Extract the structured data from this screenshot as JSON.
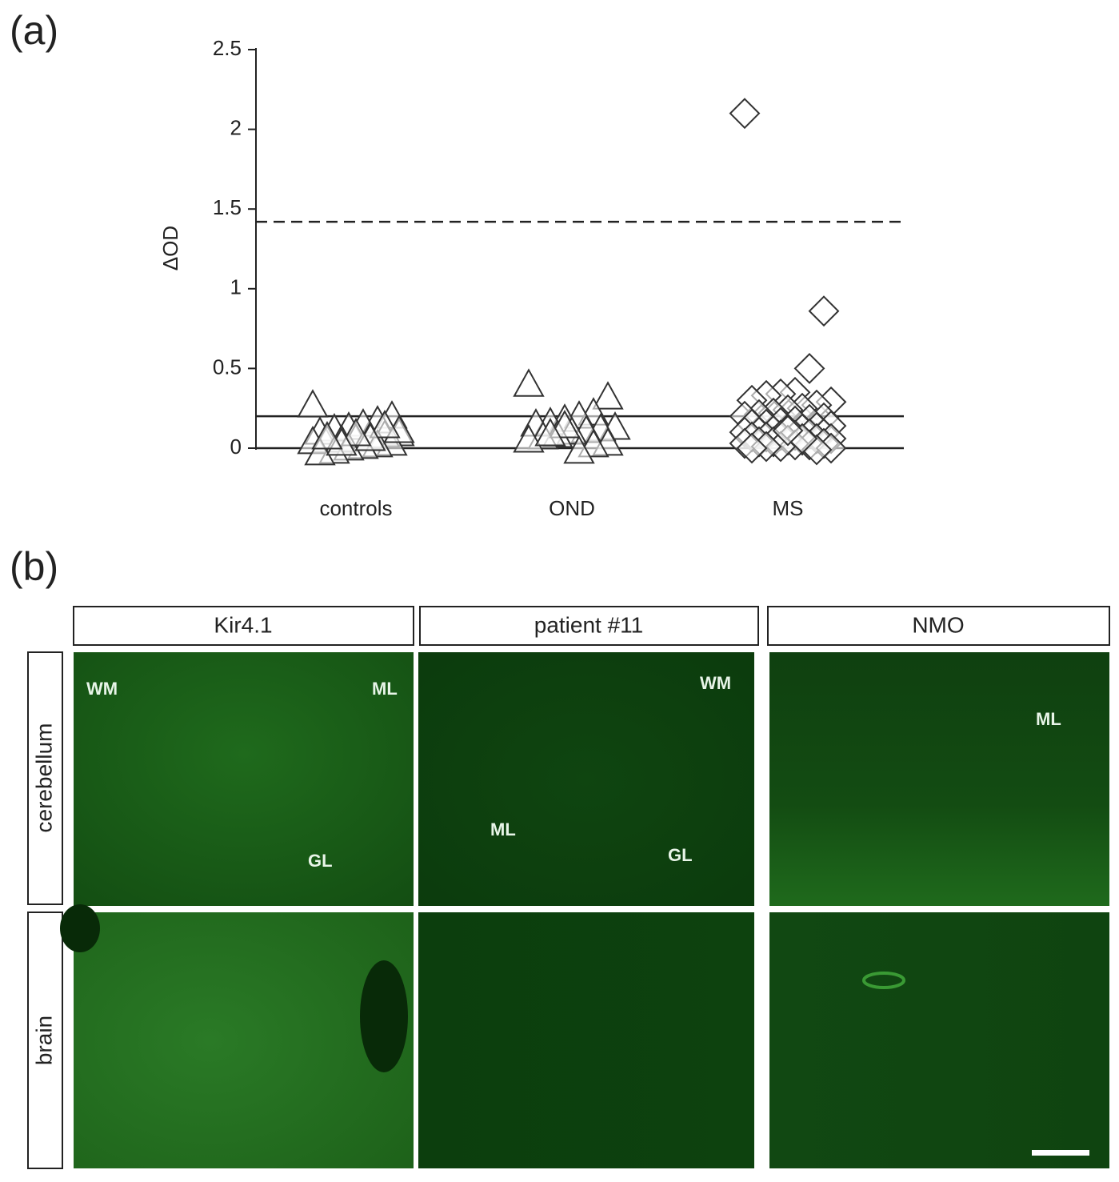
{
  "panel_labels": {
    "a": "(a)",
    "b": "(b)"
  },
  "chart_data": {
    "type": "scatter",
    "ylabel": "ΔOD",
    "ylim": [
      0,
      2.5
    ],
    "yticks": [
      0,
      0.5,
      1,
      1.5,
      2,
      2.5
    ],
    "hlines": [
      {
        "value": 1.42,
        "style": "dashed"
      },
      {
        "value": 0.2,
        "style": "solid"
      },
      {
        "value": 0,
        "style": "solid"
      }
    ],
    "color": "#333333",
    "groups": [
      {
        "category": "controls",
        "marker": "triangle",
        "values": [
          0.27,
          0.2,
          0.17,
          0.15,
          0.13,
          0.12,
          0.1,
          0.09,
          0.08,
          0.07,
          0.06,
          0.05,
          0.05,
          0.04,
          0.03,
          0.02,
          0.01,
          0.0,
          -0.02,
          -0.03,
          0.11,
          0.14,
          0.06,
          0.09,
          0.03,
          0.07
        ]
      },
      {
        "category": "OND",
        "marker": "triangle",
        "values": [
          0.4,
          0.32,
          0.22,
          0.2,
          0.18,
          0.16,
          0.15,
          0.13,
          0.12,
          0.11,
          0.1,
          0.08,
          0.07,
          0.05,
          0.03,
          0.02,
          -0.02,
          0.14,
          0.09
        ]
      },
      {
        "category": "MS",
        "marker": "diamond",
        "values": [
          2.1,
          0.86,
          0.5,
          0.35,
          0.34,
          0.33,
          0.3,
          0.29,
          0.27,
          0.25,
          0.24,
          0.22,
          0.21,
          0.2,
          0.19,
          0.18,
          0.17,
          0.16,
          0.15,
          0.15,
          0.14,
          0.13,
          0.12,
          0.12,
          0.11,
          0.1,
          0.1,
          0.09,
          0.09,
          0.08,
          0.08,
          0.07,
          0.07,
          0.06,
          0.06,
          0.05,
          0.05,
          0.04,
          0.04,
          0.03,
          0.03,
          0.02,
          0.02,
          0.01,
          0.01,
          0.0,
          0.0,
          -0.01,
          0.06,
          0.11
        ]
      }
    ]
  },
  "images": {
    "columns": [
      "Kir4.1",
      "patient #11",
      "NMO"
    ],
    "rows": [
      "cerebellum",
      "brain"
    ],
    "cell_labels": {
      "kir_cb": [
        "WM",
        "ML",
        "GL"
      ],
      "pat_cb": [
        "WM",
        "ML",
        "GL"
      ],
      "nmo_cb": [
        "ML"
      ]
    }
  }
}
